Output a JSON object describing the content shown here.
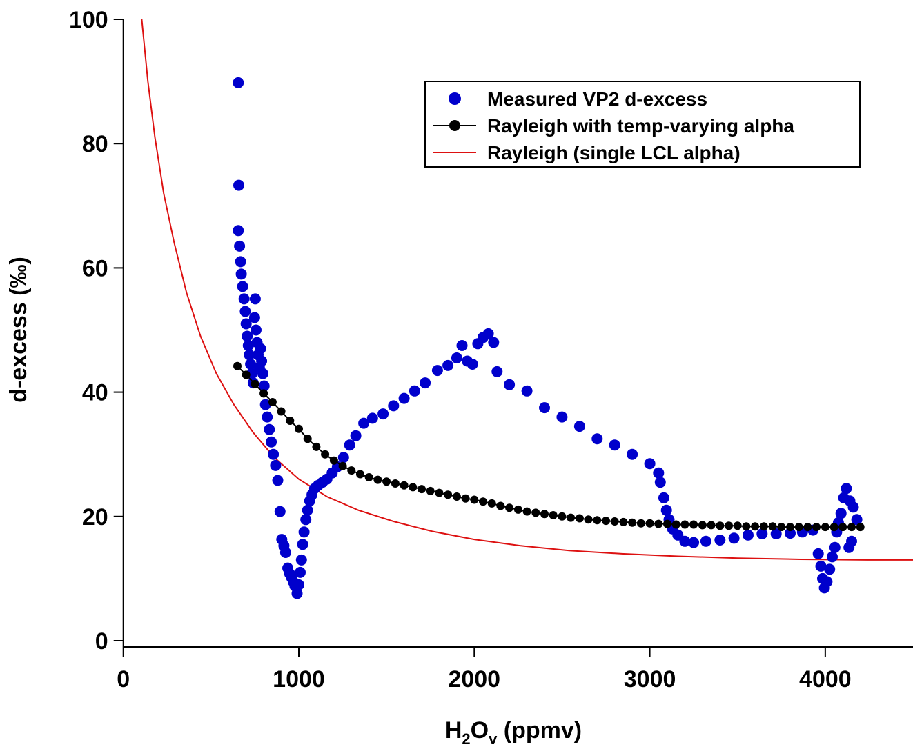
{
  "chart_data": {
    "type": "scatter",
    "xlabel": {
      "base": "H",
      "sub1": "2",
      "mid": "O",
      "sub2": "v",
      "tail": " (ppmv)"
    },
    "ylabel": "d-excess (‰)",
    "xlim": [
      -50,
      4500
    ],
    "ylim": [
      -1,
      100
    ],
    "x_ticks": [
      0,
      1000,
      2000,
      3000,
      4000
    ],
    "y_ticks": [
      0,
      20,
      40,
      60,
      80,
      100
    ],
    "grid": false,
    "legend_position": "top-right",
    "series": [
      {
        "name": "Measured VP2 d-excess",
        "kind": "markers",
        "color": "#0000cc",
        "points": [
          [
            655,
            89.8
          ],
          [
            658,
            73.3
          ],
          [
            655,
            66
          ],
          [
            662,
            63.5
          ],
          [
            668,
            61
          ],
          [
            672,
            59
          ],
          [
            680,
            57
          ],
          [
            688,
            55
          ],
          [
            695,
            53
          ],
          [
            700,
            51
          ],
          [
            706,
            49
          ],
          [
            712,
            47.5
          ],
          [
            718,
            46
          ],
          [
            725,
            44.5
          ],
          [
            733,
            43
          ],
          [
            740,
            41.5
          ],
          [
            748,
            52
          ],
          [
            752,
            55
          ],
          [
            756,
            50
          ],
          [
            762,
            48
          ],
          [
            768,
            46
          ],
          [
            775,
            44
          ],
          [
            782,
            47
          ],
          [
            788,
            45
          ],
          [
            795,
            43
          ],
          [
            802,
            41
          ],
          [
            810,
            38
          ],
          [
            820,
            36
          ],
          [
            832,
            34
          ],
          [
            843,
            32
          ],
          [
            855,
            30
          ],
          [
            868,
            28.2
          ],
          [
            880,
            25.8
          ],
          [
            893,
            20.8
          ],
          [
            903,
            16.3
          ],
          [
            915,
            15.3
          ],
          [
            925,
            14.2
          ],
          [
            937,
            11.7
          ],
          [
            948,
            10.8
          ],
          [
            958,
            10.2
          ],
          [
            968,
            9.5
          ],
          [
            978,
            8.8
          ],
          [
            990,
            7.6
          ],
          [
            1000,
            9
          ],
          [
            1008,
            11
          ],
          [
            1015,
            13
          ],
          [
            1022,
            15.5
          ],
          [
            1030,
            17.5
          ],
          [
            1040,
            19.5
          ],
          [
            1050,
            21
          ],
          [
            1062,
            22.5
          ],
          [
            1075,
            23.5
          ],
          [
            1090,
            24.5
          ],
          [
            1110,
            25
          ],
          [
            1135,
            25.5
          ],
          [
            1160,
            26
          ],
          [
            1190,
            27
          ],
          [
            1220,
            28
          ],
          [
            1255,
            29.5
          ],
          [
            1290,
            31.5
          ],
          [
            1325,
            33
          ],
          [
            1370,
            35
          ],
          [
            1420,
            35.8
          ],
          [
            1480,
            36.5
          ],
          [
            1540,
            37.8
          ],
          [
            1600,
            39
          ],
          [
            1660,
            40.2
          ],
          [
            1720,
            41.5
          ],
          [
            1790,
            43.5
          ],
          [
            1850,
            44.3
          ],
          [
            1900,
            45.5
          ],
          [
            1930,
            47.5
          ],
          [
            1960,
            45
          ],
          [
            1990,
            44.5
          ],
          [
            2020,
            47.8
          ],
          [
            2050,
            48.8
          ],
          [
            2080,
            49.4
          ],
          [
            2110,
            48
          ],
          [
            2130,
            43.3
          ],
          [
            2200,
            41.2
          ],
          [
            2300,
            40.2
          ],
          [
            2400,
            37.5
          ],
          [
            2500,
            36
          ],
          [
            2600,
            34.5
          ],
          [
            2700,
            32.5
          ],
          [
            2800,
            31.5
          ],
          [
            2900,
            30
          ],
          [
            3000,
            28.5
          ],
          [
            3050,
            27
          ],
          [
            3060,
            25.5
          ],
          [
            3080,
            23
          ],
          [
            3095,
            21
          ],
          [
            3110,
            19.5
          ],
          [
            3130,
            18
          ],
          [
            3160,
            17
          ],
          [
            3200,
            16
          ],
          [
            3250,
            15.8
          ],
          [
            3320,
            16
          ],
          [
            3400,
            16.2
          ],
          [
            3480,
            16.5
          ],
          [
            3560,
            17
          ],
          [
            3640,
            17.2
          ],
          [
            3720,
            17.2
          ],
          [
            3800,
            17.3
          ],
          [
            3870,
            17.5
          ],
          [
            3930,
            17.8
          ],
          [
            3960,
            14
          ],
          [
            3975,
            12
          ],
          [
            3985,
            10
          ],
          [
            3995,
            8.5
          ],
          [
            4010,
            9.5
          ],
          [
            4025,
            11.5
          ],
          [
            4040,
            13.5
          ],
          [
            4055,
            15
          ],
          [
            4065,
            17.5
          ],
          [
            4075,
            19
          ],
          [
            4090,
            20.5
          ],
          [
            4105,
            23
          ],
          [
            4120,
            24.5
          ],
          [
            4140,
            22.5
          ],
          [
            4160,
            21.5
          ],
          [
            4180,
            19.5
          ],
          [
            4150,
            16
          ],
          [
            4135,
            15
          ]
        ]
      },
      {
        "name": "Rayleigh with temp-varying alpha",
        "kind": "line-markers",
        "color": "#000000",
        "points": [
          [
            650,
            44.2
          ],
          [
            700,
            42.8
          ],
          [
            750,
            41.3
          ],
          [
            800,
            39.8
          ],
          [
            850,
            38.4
          ],
          [
            900,
            36.9
          ],
          [
            950,
            35.4
          ],
          [
            1000,
            34.1
          ],
          [
            1050,
            32.5
          ],
          [
            1100,
            31.2
          ],
          [
            1150,
            30
          ],
          [
            1200,
            29
          ],
          [
            1250,
            28.1
          ],
          [
            1300,
            27.4
          ],
          [
            1350,
            26.8
          ],
          [
            1400,
            26.3
          ],
          [
            1450,
            25.9
          ],
          [
            1500,
            25.6
          ],
          [
            1550,
            25.3
          ],
          [
            1600,
            25
          ],
          [
            1650,
            24.7
          ],
          [
            1700,
            24.4
          ],
          [
            1750,
            24.1
          ],
          [
            1800,
            23.8
          ],
          [
            1850,
            23.5
          ],
          [
            1900,
            23.2
          ],
          [
            1950,
            22.9
          ],
          [
            2000,
            22.7
          ],
          [
            2050,
            22.4
          ],
          [
            2100,
            22.1
          ],
          [
            2150,
            21.7
          ],
          [
            2200,
            21.4
          ],
          [
            2250,
            21.1
          ],
          [
            2300,
            20.8
          ],
          [
            2350,
            20.6
          ],
          [
            2400,
            20.4
          ],
          [
            2450,
            20.2
          ],
          [
            2500,
            20
          ],
          [
            2550,
            19.8
          ],
          [
            2600,
            19.7
          ],
          [
            2650,
            19.5
          ],
          [
            2700,
            19.4
          ],
          [
            2750,
            19.3
          ],
          [
            2800,
            19.2
          ],
          [
            2850,
            19.1
          ],
          [
            2900,
            19
          ],
          [
            2950,
            18.9
          ],
          [
            3000,
            18.9
          ],
          [
            3050,
            18.8
          ],
          [
            3100,
            18.8
          ],
          [
            3150,
            18.7
          ],
          [
            3200,
            18.7
          ],
          [
            3250,
            18.7
          ],
          [
            3300,
            18.6
          ],
          [
            3350,
            18.6
          ],
          [
            3400,
            18.5
          ],
          [
            3450,
            18.5
          ],
          [
            3500,
            18.5
          ],
          [
            3550,
            18.4
          ],
          [
            3600,
            18.4
          ],
          [
            3650,
            18.4
          ],
          [
            3700,
            18.4
          ],
          [
            3750,
            18.3
          ],
          [
            3800,
            18.3
          ],
          [
            3850,
            18.3
          ],
          [
            3900,
            18.3
          ],
          [
            3950,
            18.3
          ],
          [
            4000,
            18.3
          ],
          [
            4050,
            18.3
          ],
          [
            4100,
            18.3
          ],
          [
            4150,
            18.3
          ],
          [
            4200,
            18.3
          ]
        ]
      },
      {
        "name": "Rayleigh (single LCL alpha)",
        "kind": "line",
        "color": "#dd1111",
        "points": [
          [
            105,
            100
          ],
          [
            140,
            90
          ],
          [
            180,
            81
          ],
          [
            230,
            72
          ],
          [
            290,
            64
          ],
          [
            360,
            56
          ],
          [
            440,
            49
          ],
          [
            530,
            43
          ],
          [
            630,
            38
          ],
          [
            740,
            33.5
          ],
          [
            860,
            29.5
          ],
          [
            1000,
            26
          ],
          [
            1160,
            23.2
          ],
          [
            1340,
            21
          ],
          [
            1540,
            19.2
          ],
          [
            1760,
            17.6
          ],
          [
            2000,
            16.3
          ],
          [
            2260,
            15.3
          ],
          [
            2540,
            14.5
          ],
          [
            2840,
            14
          ],
          [
            3160,
            13.6
          ],
          [
            3500,
            13.3
          ],
          [
            3860,
            13.1
          ],
          [
            4240,
            13
          ],
          [
            4500,
            13
          ]
        ]
      }
    ]
  }
}
